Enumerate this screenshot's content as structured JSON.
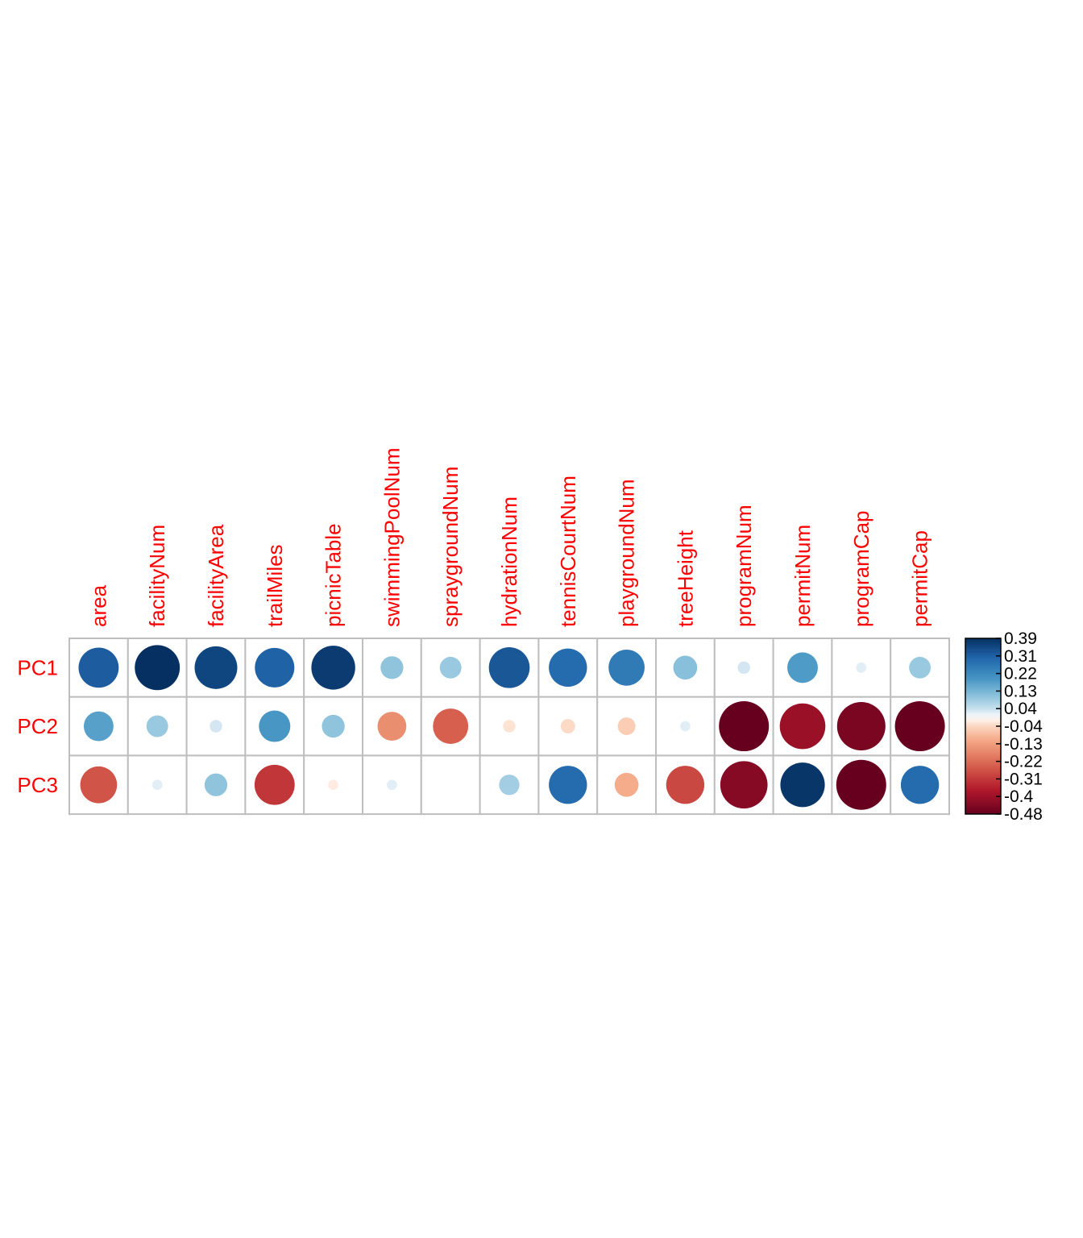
{
  "chart_data": {
    "type": "heatmap",
    "title": "",
    "rows": [
      "PC1",
      "PC2",
      "PC3"
    ],
    "columns": [
      "area",
      "facilityNum",
      "facilityArea",
      "trailMiles",
      "picnicTable",
      "swimmingPoolNum",
      "spraygroundNum",
      "hydrationNum",
      "tennisCourtNum",
      "playgroundNum",
      "treeHeight",
      "programNum",
      "permitNum",
      "programCap",
      "permitCap"
    ],
    "values": [
      [
        0.31,
        0.39,
        0.35,
        0.3,
        0.37,
        0.1,
        0.09,
        0.32,
        0.28,
        0.25,
        0.11,
        0.03,
        0.18,
        0.02,
        0.09
      ],
      [
        0.17,
        0.09,
        0.03,
        0.19,
        0.1,
        -0.16,
        -0.24,
        -0.03,
        -0.04,
        -0.06,
        0.02,
        -0.48,
        -0.4,
        -0.45,
        -0.48
      ],
      [
        -0.26,
        0.02,
        0.1,
        -0.31,
        -0.02,
        0.02,
        0.0,
        0.08,
        0.28,
        -0.11,
        -0.28,
        -0.43,
        0.38,
        -0.48,
        0.28
      ]
    ],
    "color_scale": {
      "min": -0.48,
      "max": 0.39,
      "ticks": [
        "0.39",
        "0.31",
        "0.22",
        "0.13",
        "0.04",
        "-0.04",
        "-0.13",
        "-0.22",
        "-0.31",
        "-0.4",
        "-0.48"
      ],
      "low_color": "#67001f",
      "mid_color": "#ffffff",
      "high_color": "#053061"
    },
    "grid": true,
    "legend": "right"
  }
}
